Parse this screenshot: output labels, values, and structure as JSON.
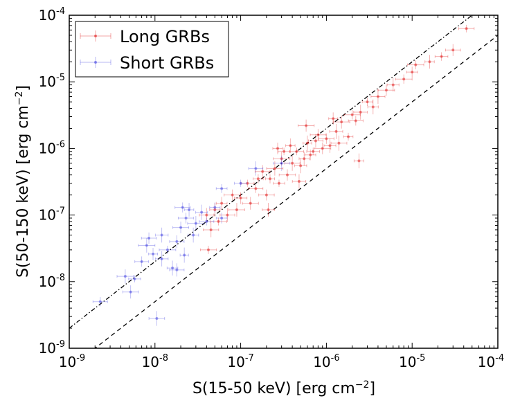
{
  "chart_data": {
    "type": "scatter",
    "xscale": "log",
    "yscale": "log",
    "xlim": [
      1e-09,
      0.0001
    ],
    "ylim": [
      1e-09,
      0.0001
    ],
    "x_ticks": [
      {
        "base": "10",
        "exp": "-9"
      },
      {
        "base": "10",
        "exp": "-8"
      },
      {
        "base": "10",
        "exp": "-7"
      },
      {
        "base": "10",
        "exp": "-6"
      },
      {
        "base": "10",
        "exp": "-5"
      },
      {
        "base": "10",
        "exp": "-4"
      }
    ],
    "y_ticks": [
      {
        "base": "10",
        "exp": "-9"
      },
      {
        "base": "10",
        "exp": "-8"
      },
      {
        "base": "10",
        "exp": "-7"
      },
      {
        "base": "10",
        "exp": "-6"
      },
      {
        "base": "10",
        "exp": "-5"
      },
      {
        "base": "10",
        "exp": "-4"
      }
    ],
    "xlabel": {
      "pre": "S(15-50 keV) [erg cm",
      "sup": "−2",
      "post": "]"
    },
    "ylabel": {
      "pre": "S(50-150 keV) [erg cm",
      "sup": "−2",
      "post": "]"
    },
    "legend_position": "top-left",
    "grid": false,
    "reference_lines": [
      {
        "style": "dashed",
        "ratio": 0.5
      },
      {
        "style": "dash-dot",
        "ratio": 2.0
      }
    ],
    "series": [
      {
        "name": "Long GRBs",
        "color": "#dd0000",
        "points": [
          [
            4.3e-05,
            6.3e-05
          ],
          [
            3e-05,
            3e-05
          ],
          [
            2.2e-05,
            2.4e-05
          ],
          [
            1.6e-05,
            2e-05
          ],
          [
            1.1e-05,
            1.8e-05
          ],
          [
            1e-05,
            1.4e-05
          ],
          [
            8e-06,
            1.1e-05
          ],
          [
            6e-06,
            9e-06
          ],
          [
            5e-06,
            7.5e-06
          ],
          [
            4e-06,
            6e-06
          ],
          [
            3.5e-06,
            4.2e-06
          ],
          [
            3e-06,
            5e-06
          ],
          [
            2.5e-06,
            3.5e-06
          ],
          [
            2.2e-06,
            2.6e-06
          ],
          [
            2e-06,
            3.2e-06
          ],
          [
            1.8e-06,
            1.5e-06
          ],
          [
            1.5e-06,
            2.5e-06
          ],
          [
            1.3e-06,
            1.8e-06
          ],
          [
            1.2e-06,
            2.8e-06
          ],
          [
            1e-06,
            1.4e-06
          ],
          [
            9e-07,
            1e-06
          ],
          [
            8e-07,
            1.6e-06
          ],
          [
            7e-07,
            9e-07
          ],
          [
            6e-07,
            1.2e-06
          ],
          [
            5.5e-07,
            7e-07
          ],
          [
            5e-07,
            5.5e-07
          ],
          [
            4.5e-07,
            9e-07
          ],
          [
            4e-07,
            6e-07
          ],
          [
            3.5e-07,
            4e-07
          ],
          [
            3e-07,
            7e-07
          ],
          [
            2.8e-07,
            3e-07
          ],
          [
            2.5e-07,
            5e-07
          ],
          [
            2.2e-07,
            3.5e-07
          ],
          [
            2e-07,
            2e-07
          ],
          [
            1.8e-07,
            4.5e-07
          ],
          [
            1.5e-07,
            2.5e-07
          ],
          [
            1.3e-07,
            1.5e-07
          ],
          [
            1.2e-07,
            3e-07
          ],
          [
            1e-07,
            1.8e-07
          ],
          [
            9e-08,
            1.2e-07
          ],
          [
            8e-08,
            2e-07
          ],
          [
            7e-08,
            1e-07
          ],
          [
            6e-08,
            1.5e-07
          ],
          [
            5.5e-08,
            8e-08
          ],
          [
            5e-08,
            1.2e-07
          ],
          [
            4.5e-08,
            6e-08
          ],
          [
            4.2e-08,
            3e-08
          ],
          [
            4e-08,
            1e-07
          ],
          [
            3.2e-07,
            9e-07
          ],
          [
            3.8e-07,
            1.1e-06
          ],
          [
            6.5e-07,
            8e-07
          ],
          [
            7.5e-07,
            1.3e-06
          ],
          [
            1.1e-06,
            1.1e-06
          ],
          [
            1.4e-06,
            1.2e-06
          ],
          [
            2.4e-06,
            6.5e-07
          ],
          [
            2.7e-07,
            1e-06
          ],
          [
            4.8e-07,
            3.2e-07
          ],
          [
            1.6e-07,
            3.5e-07
          ],
          [
            2.1e-07,
            1.2e-07
          ],
          [
            5.8e-07,
            2.2e-06
          ]
        ]
      },
      {
        "name": "Short GRBs",
        "color": "#3030dd",
        "points": [
          [
            2.3e-09,
            5e-09
          ],
          [
            4.5e-09,
            1.2e-08
          ],
          [
            5.2e-09,
            7e-09
          ],
          [
            5.8e-09,
            1.1e-08
          ],
          [
            7e-09,
            2e-08
          ],
          [
            8e-09,
            3.5e-08
          ],
          [
            9.5e-09,
            2.6e-08
          ],
          [
            1.05e-08,
            2.8e-09
          ],
          [
            1.2e-08,
            5e-08
          ],
          [
            1.4e-08,
            3e-08
          ],
          [
            1.6e-08,
            1.6e-08
          ],
          [
            1.8e-08,
            4e-08
          ],
          [
            2e-08,
            6.5e-08
          ],
          [
            2.3e-08,
            9e-08
          ],
          [
            2.5e-08,
            1.2e-07
          ],
          [
            2.8e-08,
            5e-08
          ],
          [
            3e-08,
            7.5e-08
          ],
          [
            3.5e-08,
            1.1e-07
          ],
          [
            4e-08,
            8e-08
          ],
          [
            5e-08,
            1.3e-07
          ],
          [
            6e-08,
            2.5e-07
          ],
          [
            1e-07,
            3e-07
          ],
          [
            1.5e-07,
            5e-07
          ],
          [
            1.8e-08,
            1.5e-08
          ],
          [
            2.2e-08,
            2.5e-08
          ],
          [
            3e-07,
            6e-07
          ],
          [
            1.2e-08,
            2.2e-08
          ],
          [
            8.5e-09,
            4.5e-08
          ],
          [
            6e-08,
            9e-08
          ],
          [
            2.1e-08,
            1.3e-07
          ]
        ]
      }
    ]
  }
}
